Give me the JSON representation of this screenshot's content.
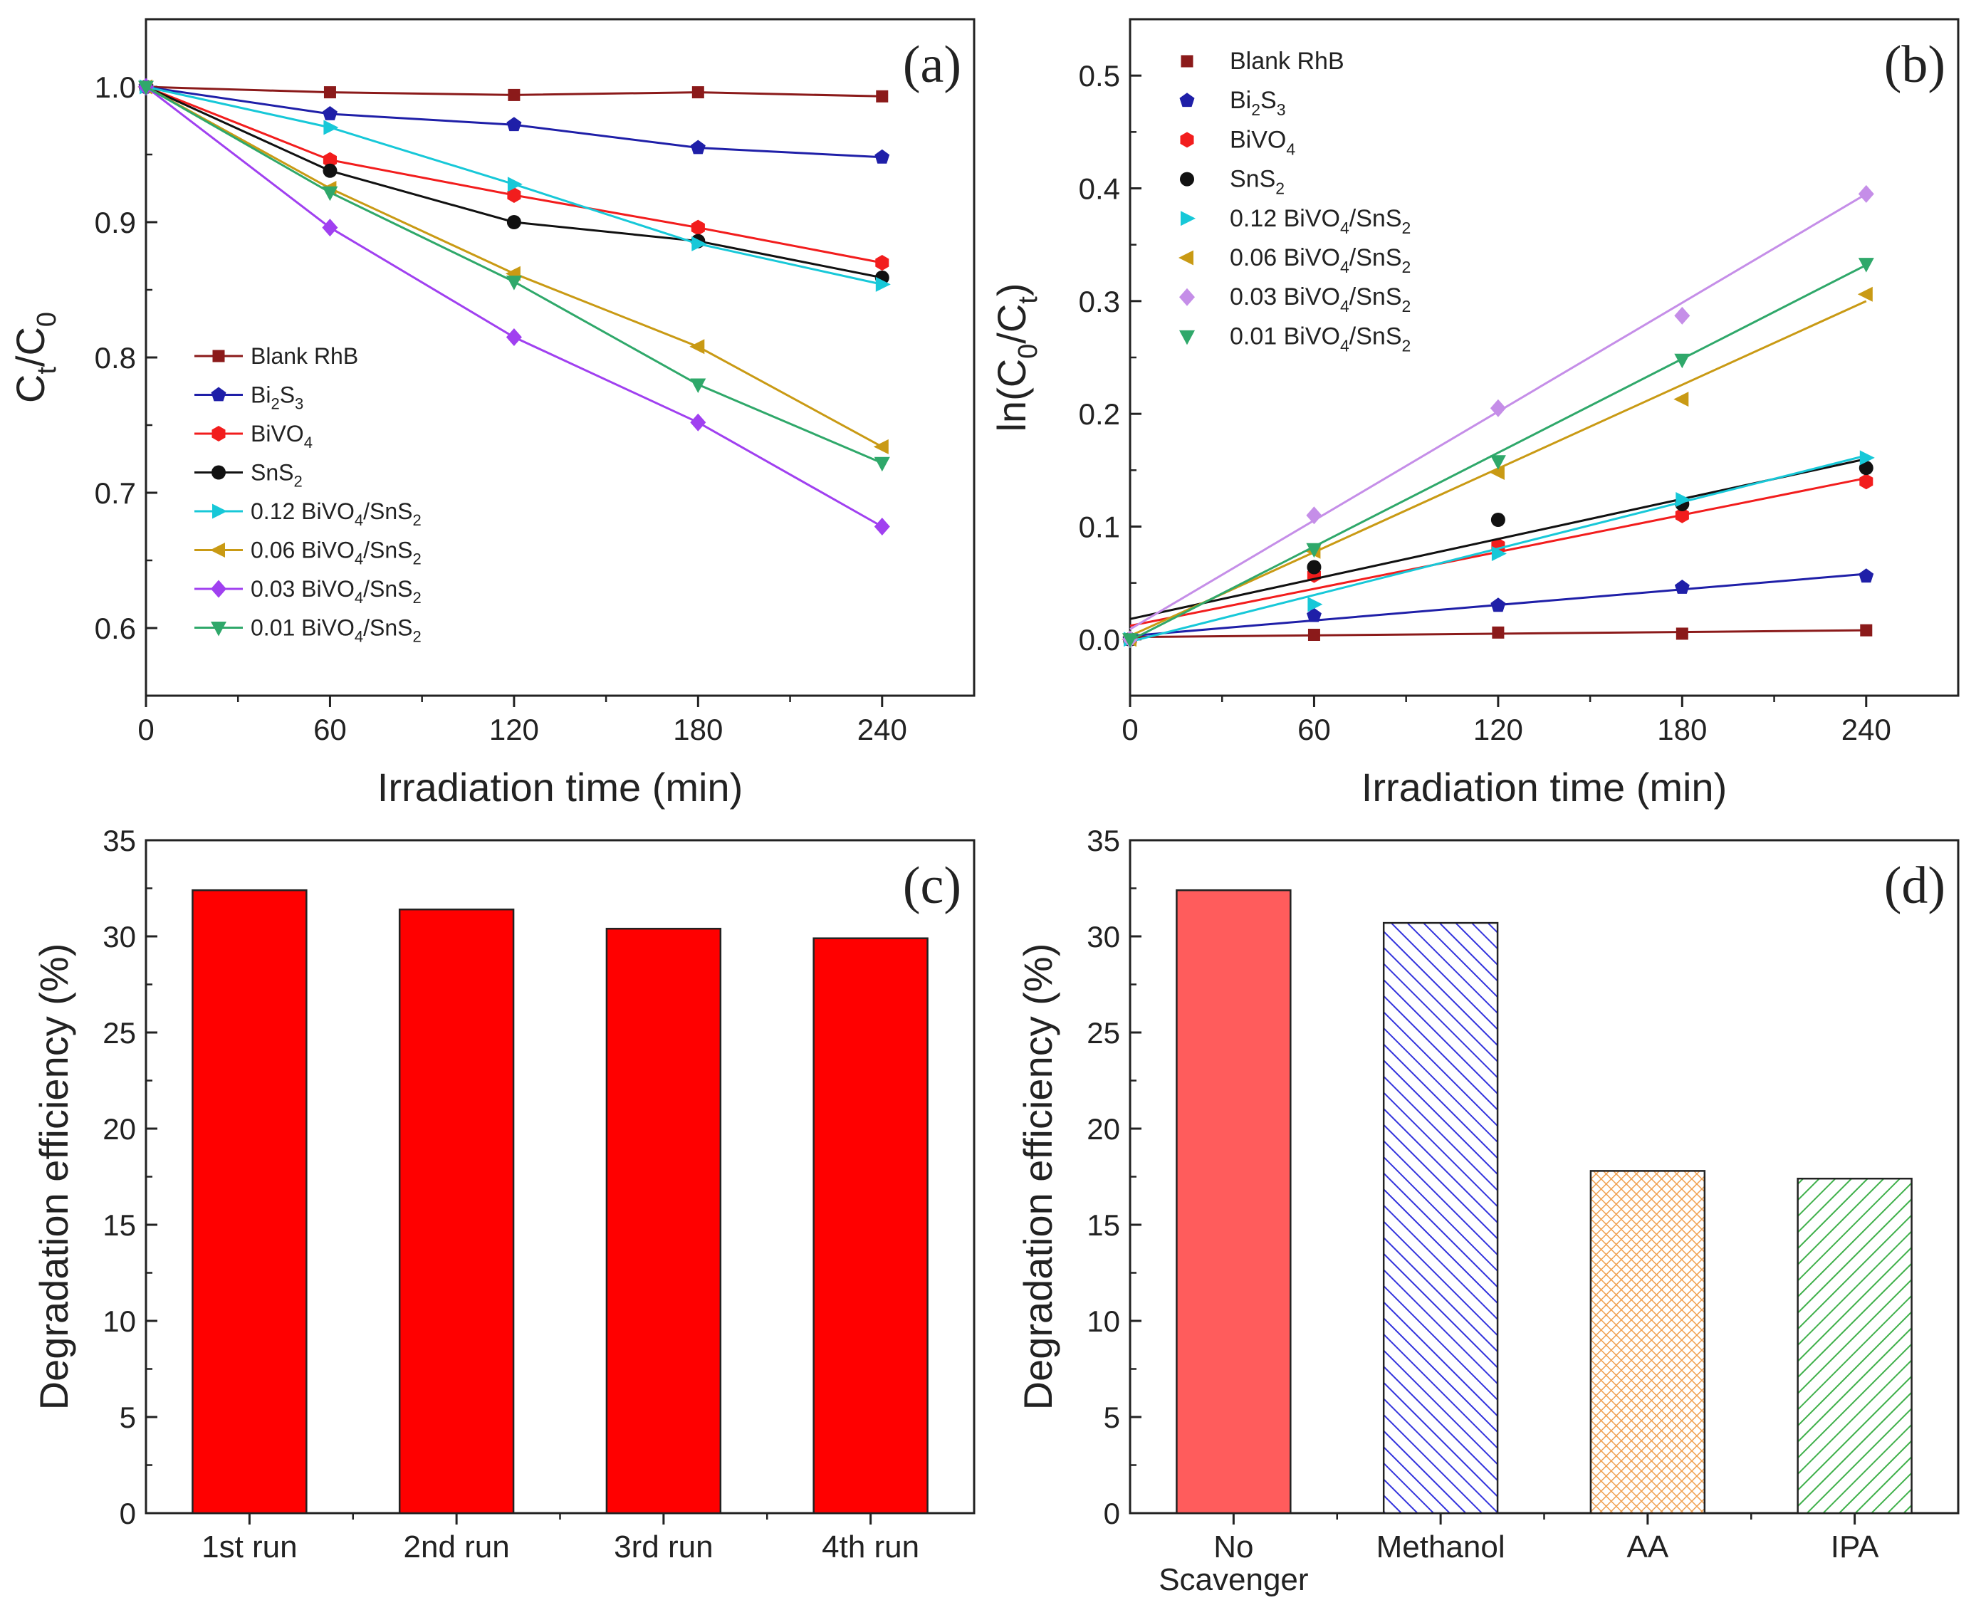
{
  "chart_data": [
    {
      "id": "a",
      "type": "line",
      "panel_label": "(a)",
      "title": "",
      "xlabel": "Irradiation time (min)",
      "ylabel": "Ct/C0",
      "ylabel_main": "C",
      "ylabel_sub1": "t",
      "ylabel_mid": "/C",
      "ylabel_sub2": "0",
      "xlim": [
        0,
        270
      ],
      "ylim": [
        0.55,
        1.05
      ],
      "xticks": [
        0,
        60,
        120,
        180,
        240
      ],
      "xtick_labels": [
        "0",
        "60",
        "120",
        "180",
        "240"
      ],
      "yticks": [
        0.6,
        0.7,
        0.8,
        0.9,
        1.0
      ],
      "ytick_labels": [
        "0.6",
        "0.7",
        "0.8",
        "0.9",
        "1.0"
      ],
      "legend_position": "lower-left",
      "x": [
        0,
        60,
        120,
        180,
        240
      ],
      "series": [
        {
          "name": "Blank RhB",
          "label_parts": [
            "Blank RhB"
          ],
          "color": "#8b1a1a",
          "marker": "square",
          "values": [
            1.0,
            0.996,
            0.994,
            0.996,
            0.993
          ]
        },
        {
          "name": "Bi2S3",
          "label_parts": [
            "Bi",
            "2",
            "S",
            "3"
          ],
          "color": "#1f1fa8",
          "marker": "pentagon",
          "values": [
            1.0,
            0.98,
            0.972,
            0.955,
            0.948
          ]
        },
        {
          "name": "BiVO4",
          "label_parts": [
            "BiVO",
            "4"
          ],
          "color": "#f21d1d",
          "marker": "hexagon",
          "values": [
            1.0,
            0.946,
            0.92,
            0.896,
            0.87
          ]
        },
        {
          "name": "SnS2",
          "label_parts": [
            "SnS",
            "2"
          ],
          "color": "#111111",
          "marker": "circle",
          "values": [
            1.0,
            0.938,
            0.9,
            0.886,
            0.859
          ]
        },
        {
          "name": "0.12 BiVO4/SnS2",
          "label_parts": [
            "0.12 BiVO",
            "4",
            "/SnS",
            "2"
          ],
          "color": "#17c8d8",
          "marker": "tri-right",
          "values": [
            1.0,
            0.97,
            0.928,
            0.884,
            0.854
          ]
        },
        {
          "name": "0.06 BiVO4/SnS2",
          "label_parts": [
            "0.06 BiVO",
            "4",
            "/SnS",
            "2"
          ],
          "color": "#c99a14",
          "marker": "tri-left",
          "values": [
            1.0,
            0.925,
            0.862,
            0.808,
            0.734
          ]
        },
        {
          "name": "0.03 BiVO4/SnS2",
          "label_parts": [
            "0.03 BiVO",
            "4",
            "/SnS",
            "2"
          ],
          "color": "#a040f0",
          "marker": "diamond",
          "values": [
            1.0,
            0.896,
            0.815,
            0.752,
            0.675
          ]
        },
        {
          "name": "0.01 BiVO4/SnS2",
          "label_parts": [
            "0.01 BiVO",
            "4",
            "/SnS",
            "2"
          ],
          "color": "#2fa86a",
          "marker": "tri-down",
          "values": [
            1.0,
            0.922,
            0.856,
            0.78,
            0.722
          ]
        }
      ]
    },
    {
      "id": "b",
      "type": "scatter",
      "panel_label": "(b)",
      "title": "",
      "xlabel": "Irradiation time (min)",
      "ylabel": "ln(C0/Ct)",
      "ylabel_main": "ln(C",
      "ylabel_sub1": "0",
      "ylabel_mid": "/C",
      "ylabel_sub2": "t",
      "ylabel_end": ")",
      "xlim": [
        0,
        270
      ],
      "ylim": [
        -0.05,
        0.55
      ],
      "xticks": [
        0,
        60,
        120,
        180,
        240
      ],
      "xtick_labels": [
        "0",
        "60",
        "120",
        "180",
        "240"
      ],
      "yticks": [
        0.0,
        0.1,
        0.2,
        0.3,
        0.4,
        0.5
      ],
      "ytick_labels": [
        "0.0",
        "0.1",
        "0.2",
        "0.3",
        "0.4",
        "0.5"
      ],
      "legend_position": "upper-left",
      "x": [
        0,
        60,
        120,
        180,
        240
      ],
      "series": [
        {
          "name": "Blank RhB",
          "label_parts": [
            "Blank RhB"
          ],
          "color": "#8b1a1a",
          "marker": "square",
          "values": [
            0.0,
            0.004,
            0.006,
            0.005,
            0.008
          ],
          "fit": [
            0.002,
            0.008
          ]
        },
        {
          "name": "Bi2S3",
          "label_parts": [
            "Bi",
            "2",
            "S",
            "3"
          ],
          "color": "#1f1fa8",
          "marker": "pentagon",
          "values": [
            0.0,
            0.021,
            0.03,
            0.046,
            0.056
          ],
          "fit": [
            0.003,
            0.058
          ]
        },
        {
          "name": "BiVO4",
          "label_parts": [
            "BiVO",
            "4"
          ],
          "color": "#f21d1d",
          "marker": "hexagon",
          "values": [
            0.0,
            0.057,
            0.083,
            0.11,
            0.14
          ],
          "fit": [
            0.012,
            0.143
          ]
        },
        {
          "name": "SnS2",
          "label_parts": [
            "SnS",
            "2"
          ],
          "color": "#111111",
          "marker": "circle",
          "values": [
            0.0,
            0.064,
            0.106,
            0.12,
            0.152
          ],
          "fit": [
            0.018,
            0.16
          ]
        },
        {
          "name": "0.12 BiVO4/SnS2",
          "label_parts": [
            "0.12 BiVO",
            "4",
            "/SnS",
            "2"
          ],
          "color": "#17c8d8",
          "marker": "tri-right",
          "values": [
            0.0,
            0.031,
            0.076,
            0.124,
            0.161
          ],
          "fit": [
            -0.002,
            0.163
          ]
        },
        {
          "name": "0.06 BiVO4/SnS2",
          "label_parts": [
            "0.06 BiVO",
            "4",
            "/SnS",
            "2"
          ],
          "color": "#c99a14",
          "marker": "tri-left",
          "values": [
            0.0,
            0.078,
            0.148,
            0.213,
            0.306
          ],
          "fit": [
            0.003,
            0.3
          ]
        },
        {
          "name": "0.03 BiVO4/SnS2",
          "label_parts": [
            "0.03 BiVO",
            "4",
            "/SnS",
            "2"
          ],
          "color": "#c58ee8",
          "marker": "diamond",
          "values": [
            0.0,
            0.11,
            0.205,
            0.287,
            0.395
          ],
          "fit": [
            0.009,
            0.395
          ]
        },
        {
          "name": "0.01 BiVO4/SnS2",
          "label_parts": [
            "0.01 BiVO",
            "4",
            "/SnS",
            "2"
          ],
          "color": "#2fa86a",
          "marker": "tri-down",
          "values": [
            0.0,
            0.08,
            0.158,
            0.248,
            0.333
          ],
          "fit": [
            -0.001,
            0.332
          ]
        }
      ]
    },
    {
      "id": "c",
      "type": "bar",
      "panel_label": "(c)",
      "title": "",
      "xlabel": "",
      "ylabel": "Degradation efficiency (%)",
      "ylim": [
        0,
        35
      ],
      "yticks": [
        0,
        5,
        10,
        15,
        20,
        25,
        30,
        35
      ],
      "ytick_labels": [
        "0",
        "5",
        "10",
        "15",
        "20",
        "25",
        "30",
        "35"
      ],
      "categories": [
        "1st run",
        "2nd run",
        "3rd run",
        "4th run"
      ],
      "category_lines": [
        [
          "1st run"
        ],
        [
          "2nd run"
        ],
        [
          "3rd run"
        ],
        [
          "4th run"
        ]
      ],
      "values": [
        32.4,
        31.4,
        30.4,
        29.9
      ],
      "colors": [
        "#ff0000",
        "#ff0000",
        "#ff0000",
        "#ff0000"
      ],
      "patterns": [
        "solid",
        "solid",
        "solid",
        "solid"
      ]
    },
    {
      "id": "d",
      "type": "bar",
      "panel_label": "(d)",
      "title": "",
      "xlabel": "",
      "ylabel": "Degradation efficiency (%)",
      "ylim": [
        0,
        35
      ],
      "yticks": [
        0,
        5,
        10,
        15,
        20,
        25,
        30,
        35
      ],
      "ytick_labels": [
        "0",
        "5",
        "10",
        "15",
        "20",
        "25",
        "30",
        "35"
      ],
      "categories": [
        "No Scavenger",
        "Methanol",
        "AA",
        "IPA"
      ],
      "category_lines": [
        [
          "No",
          "Scavenger"
        ],
        [
          "Methanol"
        ],
        [
          "AA"
        ],
        [
          "IPA"
        ]
      ],
      "values": [
        32.4,
        30.7,
        17.8,
        17.4
      ],
      "colors": [
        "#ff5c5c",
        "#3333dd",
        "#f0a050",
        "#3fb04a"
      ],
      "patterns": [
        "solid",
        "diagonal",
        "crosshatch",
        "diagonal"
      ]
    }
  ]
}
